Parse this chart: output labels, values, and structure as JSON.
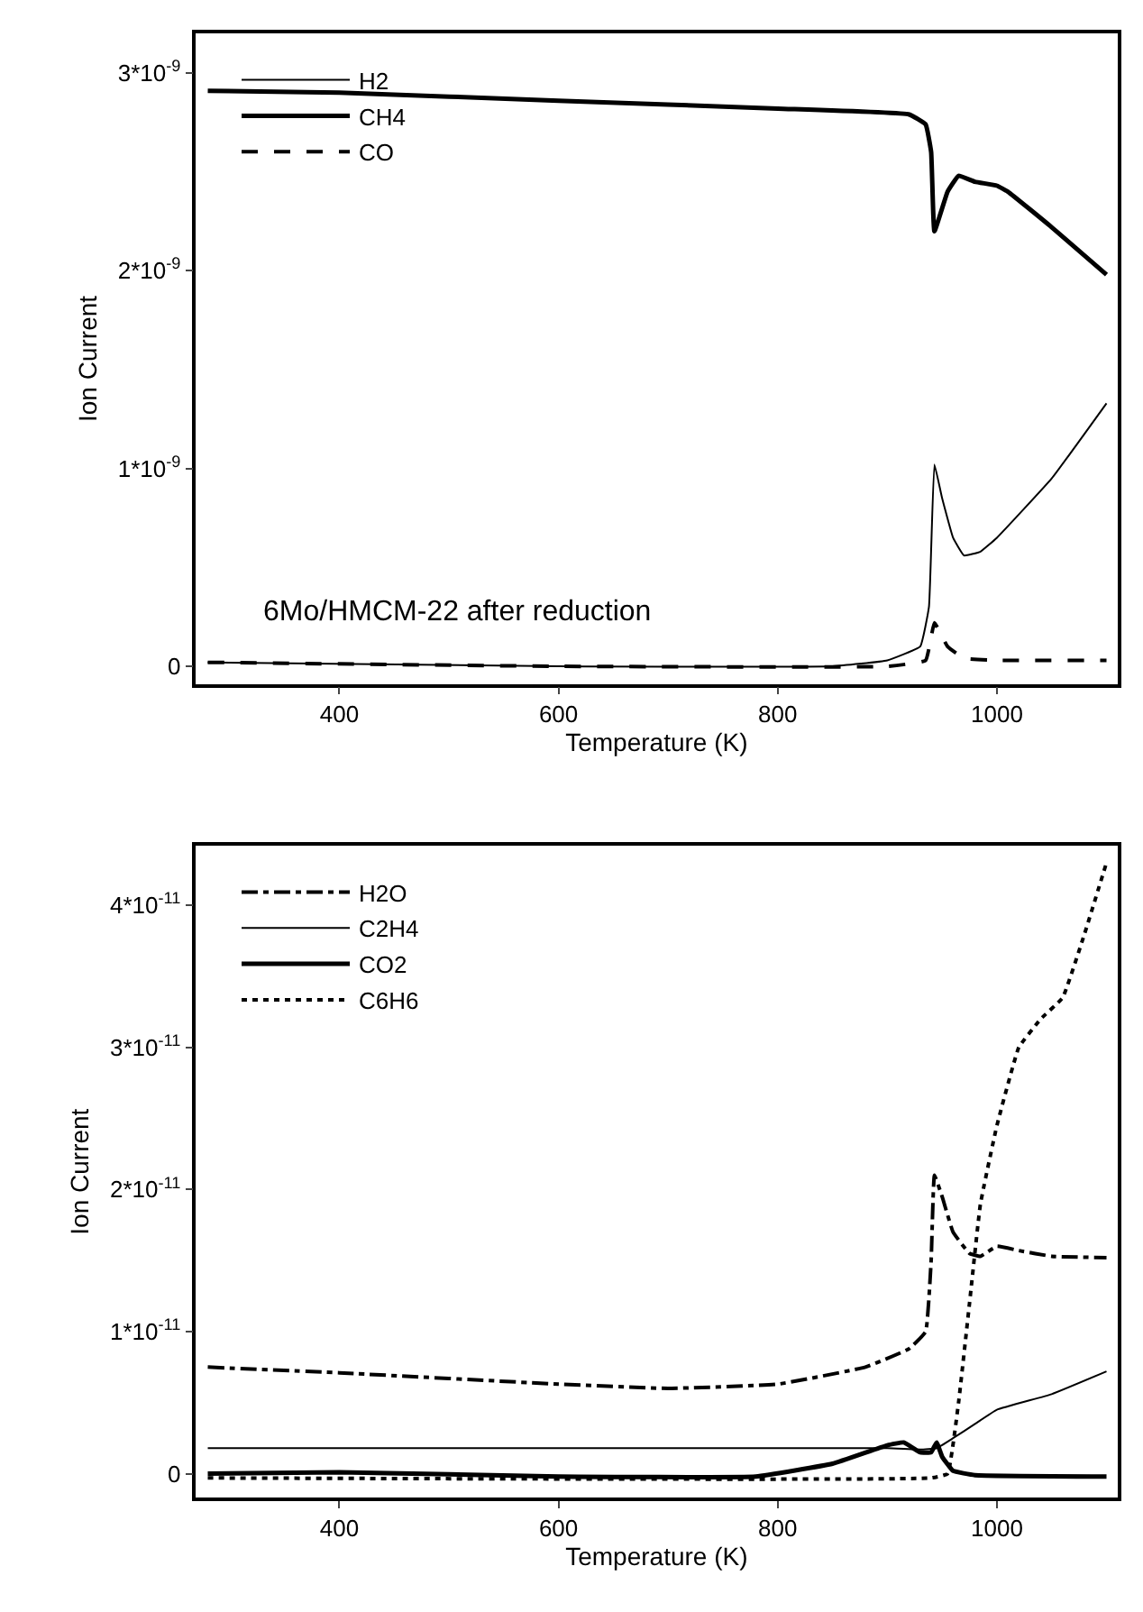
{
  "chart_data": [
    {
      "type": "line",
      "xlabel": "Temperature (K)",
      "ylabel": "Ion Current",
      "annotations": [
        "6Mo/HMCM-22 after reduction"
      ],
      "legend": "top left",
      "xlim": [
        269,
        1110
      ],
      "xticks": [
        400,
        600,
        800,
        1000
      ],
      "ylim": [
        -9e-11,
        3.2e-09
      ],
      "yticks": [
        {
          "value": 0,
          "label": "0"
        },
        {
          "value": 1e-09,
          "label": "1*10$^{-9}$"
        },
        {
          "value": 2e-09,
          "label": "2*10$^{-9}$"
        },
        {
          "value": 3e-09,
          "label": "3*10$^{-9}$"
        }
      ],
      "series": [
        {
          "name": "H2",
          "color": "#000000",
          "line_style": "solid",
          "x": [
            280,
            600,
            850,
            900,
            930,
            938,
            943,
            950,
            960,
            970,
            985,
            1000,
            1050,
            1100
          ],
          "values": [
            2e-11,
            0,
            0,
            3e-11,
            1e-10,
            3e-10,
            1.02e-09,
            8.5e-10,
            6.5e-10,
            5.6e-10,
            5.8e-10,
            6.5e-10,
            9.5e-10,
            1.33e-09
          ]
        },
        {
          "name": "CH4",
          "color": "#000000",
          "line_style": "solid",
          "x": [
            280,
            400,
            600,
            800,
            920,
            935,
            940,
            943,
            955,
            965,
            980,
            1000,
            1010,
            1050,
            1100
          ],
          "values": [
            2.91e-09,
            2.9e-09,
            2.86e-09,
            2.82e-09,
            2.79e-09,
            2.74e-09,
            2.6e-09,
            2.2e-09,
            2.4e-09,
            2.48e-09,
            2.45e-09,
            2.43e-09,
            2.4e-09,
            2.22e-09,
            1.98e-09
          ]
        },
        {
          "name": "CO",
          "color": "#000000",
          "line_style": "dashed",
          "x": [
            280,
            600,
            900,
            935,
            943,
            955,
            970,
            1000,
            1100
          ],
          "values": [
            2e-11,
            0,
            0,
            3e-11,
            2.2e-10,
            1e-10,
            4e-11,
            3e-11,
            3e-11
          ]
        }
      ]
    },
    {
      "type": "line",
      "xlabel": "Temperature (K)",
      "ylabel": "Ion Current",
      "legend": "top left",
      "xlim": [
        269,
        1110
      ],
      "xticks": [
        400,
        600,
        800,
        1000
      ],
      "ylim": [
        -1.7e-12,
        4.42e-11
      ],
      "yticks": [
        {
          "value": 0,
          "label": "0"
        },
        {
          "value": 1e-11,
          "label": "1*10$^{-11}$"
        },
        {
          "value": 2e-11,
          "label": "2*10$^{-11}$"
        },
        {
          "value": 3e-11,
          "label": "3*10$^{-11}$"
        },
        {
          "value": 4e-11,
          "label": "4*10$^{-11}$"
        }
      ],
      "series": [
        {
          "name": "H2O",
          "color": "#000000",
          "line_style": "dashdot",
          "x": [
            280,
            400,
            600,
            700,
            800,
            880,
            920,
            935,
            940,
            943,
            950,
            960,
            975,
            985,
            1000,
            1020,
            1050,
            1100
          ],
          "values": [
            7.5e-12,
            7.1e-12,
            6.3e-12,
            6e-12,
            6.3e-12,
            7.5e-12,
            8.8e-12,
            1e-11,
            1.5e-11,
            2.1e-11,
            1.95e-11,
            1.7e-11,
            1.55e-11,
            1.53e-11,
            1.6e-11,
            1.57e-11,
            1.53e-11,
            1.52e-11
          ]
        },
        {
          "name": "C2H4",
          "color": "#000000",
          "line_style": "solid",
          "x": [
            280,
            900,
            930,
            945,
            960,
            980,
            1000,
            1050,
            1100
          ],
          "values": [
            1.8e-12,
            1.8e-12,
            1.7e-12,
            1.8e-12,
            2.5e-12,
            3.5e-12,
            4.5e-12,
            5.6e-12,
            7.2e-12
          ]
        },
        {
          "name": "CO2",
          "color": "#000000",
          "line_style": "solid",
          "x": [
            280,
            400,
            600,
            780,
            850,
            900,
            915,
            930,
            940,
            945,
            950,
            960,
            980,
            1100
          ],
          "values": [
            0,
            1e-13,
            -2e-13,
            -2e-13,
            7e-13,
            2e-12,
            2.2e-12,
            1.5e-12,
            1.5e-12,
            2.2e-12,
            1.2e-12,
            2e-13,
            -1e-13,
            -2e-13
          ]
        },
        {
          "name": "C6H6",
          "color": "#000000",
          "line_style": "dotted",
          "x": [
            280,
            940,
            955,
            965,
            975,
            985,
            1000,
            1020,
            1040,
            1060,
            1080,
            1100
          ],
          "values": [
            -3e-13,
            -3e-13,
            0,
            5e-12,
            1.2e-11,
            1.9e-11,
            2.45e-11,
            3e-11,
            3.2e-11,
            3.35e-11,
            3.8e-11,
            4.3e-11
          ]
        }
      ]
    }
  ]
}
